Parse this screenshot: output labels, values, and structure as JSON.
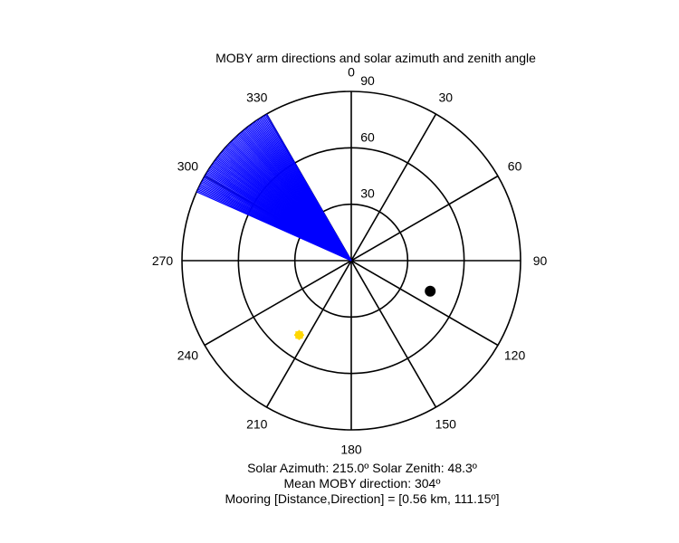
{
  "chart_data": {
    "type": "polar",
    "title": "MOBY arm directions and solar azimuth and zenith angle",
    "angle_labels": [
      "0",
      "30",
      "60",
      "90",
      "120",
      "150",
      "180",
      "210",
      "240",
      "270",
      "300",
      "330"
    ],
    "radial_ticks": [
      30,
      60,
      90
    ],
    "radial_labels": [
      "30",
      "60",
      "90"
    ],
    "rmax": 90,
    "grid": true,
    "arm_directions": {
      "color": "#0000ff",
      "azimuth_min": 294,
      "azimuth_max": 330,
      "radius": 90,
      "mean_direction": 304
    },
    "sun": {
      "azimuth": 215.0,
      "zenith": 48.3,
      "color": "#ffd700"
    },
    "mooring": {
      "direction": 111.15,
      "distance_km": 0.56,
      "plot_radius": 45,
      "color": "#000000"
    }
  },
  "footer": {
    "line1": "Solar Azimuth: 215.0º   Solar Zenith: 48.3º",
    "line2": "Mean MOBY direction: 304º",
    "line3": "Mooring [Distance,Direction] = [0.56 km, 111.15º]"
  }
}
